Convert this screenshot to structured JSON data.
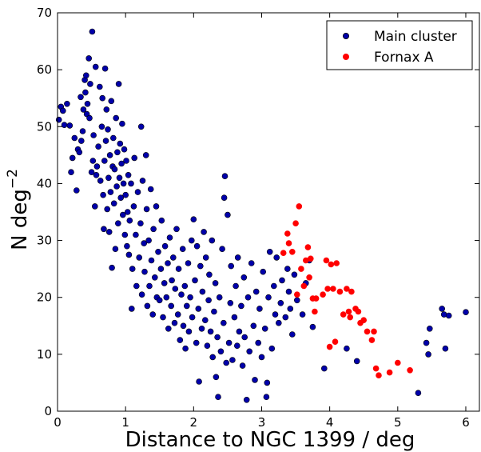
{
  "chart_data": {
    "type": "scatter",
    "title": "",
    "xlabel": "Distance to NGC 1399 / deg",
    "ylabel_main": "N deg",
    "ylabel_sup": "−2",
    "xlim": [
      0,
      6.2
    ],
    "ylim": [
      0,
      70
    ],
    "xticks": [
      "0",
      "1",
      "2",
      "3",
      "4",
      "5",
      "6"
    ],
    "yticks": [
      "0",
      "10",
      "20",
      "30",
      "40",
      "50",
      "60",
      "70"
    ],
    "grid": false,
    "legend_position": "top-right",
    "series": [
      {
        "name": "Main cluster",
        "color": "#0000aa",
        "points": [
          [
            0.02,
            51.2
          ],
          [
            0.05,
            53.5
          ],
          [
            0.08,
            52.8
          ],
          [
            0.1,
            50.3
          ],
          [
            0.14,
            54.0
          ],
          [
            0.18,
            50.2
          ],
          [
            0.2,
            42.0
          ],
          [
            0.22,
            44.5
          ],
          [
            0.25,
            48.0
          ],
          [
            0.28,
            38.8
          ],
          [
            0.3,
            46.0
          ],
          [
            0.32,
            45.5
          ],
          [
            0.34,
            55.2
          ],
          [
            0.35,
            47.5
          ],
          [
            0.37,
            49.2
          ],
          [
            0.38,
            53.0
          ],
          [
            0.4,
            58.2
          ],
          [
            0.41,
            56.0
          ],
          [
            0.42,
            59.0
          ],
          [
            0.43,
            52.2
          ],
          [
            0.44,
            54.0
          ],
          [
            0.46,
            62.0
          ],
          [
            0.47,
            51.5
          ],
          [
            0.48,
            57.5
          ],
          [
            0.5,
            42.0
          ],
          [
            0.51,
            66.7
          ],
          [
            0.52,
            44.0
          ],
          [
            0.53,
            48.5
          ],
          [
            0.55,
            36.0
          ],
          [
            0.56,
            60.5
          ],
          [
            0.57,
            41.5
          ],
          [
            0.58,
            43.0
          ],
          [
            0.6,
            46.5
          ],
          [
            0.62,
            57.0
          ],
          [
            0.63,
            40.5
          ],
          [
            0.65,
            50.0
          ],
          [
            0.66,
            55.0
          ],
          [
            0.67,
            38.0
          ],
          [
            0.68,
            32.0
          ],
          [
            0.69,
            44.0
          ],
          [
            0.7,
            60.2
          ],
          [
            0.71,
            47.5
          ],
          [
            0.72,
            53.0
          ],
          [
            0.73,
            35.5
          ],
          [
            0.74,
            49.5
          ],
          [
            0.75,
            41.0
          ],
          [
            0.76,
            31.5
          ],
          [
            0.77,
            45.0
          ],
          [
            0.78,
            38.5
          ],
          [
            0.79,
            54.5
          ],
          [
            0.8,
            25.2
          ],
          [
            0.81,
            43.0
          ],
          [
            0.82,
            48.0
          ],
          [
            0.83,
            36.5
          ],
          [
            0.84,
            42.5
          ],
          [
            0.85,
            28.5
          ],
          [
            0.86,
            51.5
          ],
          [
            0.87,
            39.5
          ],
          [
            0.88,
            45.5
          ],
          [
            0.89,
            33.0
          ],
          [
            0.9,
            57.5
          ],
          [
            0.91,
            41.0
          ],
          [
            0.92,
            47.0
          ],
          [
            0.93,
            37.5
          ],
          [
            0.94,
            43.5
          ],
          [
            0.95,
            50.5
          ],
          [
            0.96,
            34.5
          ],
          [
            0.97,
            40.0
          ],
          [
            0.98,
            46.0
          ],
          [
            0.99,
            31.0
          ],
          [
            1.0,
            38.0
          ],
          [
            1.01,
            44.0
          ],
          [
            1.02,
            29.0
          ],
          [
            1.03,
            35.0
          ],
          [
            1.04,
            41.5
          ],
          [
            1.05,
            27.5
          ],
          [
            1.06,
            33.5
          ],
          [
            1.08,
            40.0
          ],
          [
            1.09,
            18.0
          ],
          [
            1.1,
            25.0
          ],
          [
            1.12,
            36.0
          ],
          [
            1.13,
            44.5
          ],
          [
            1.15,
            31.0
          ],
          [
            1.16,
            22.0
          ],
          [
            1.18,
            38.5
          ],
          [
            1.2,
            27.0
          ],
          [
            1.22,
            33.0
          ],
          [
            1.23,
            50.0
          ],
          [
            1.24,
            20.5
          ],
          [
            1.25,
            40.5
          ],
          [
            1.27,
            29.5
          ],
          [
            1.28,
            24.5
          ],
          [
            1.3,
            45.0
          ],
          [
            1.31,
            35.5
          ],
          [
            1.32,
            18.5
          ],
          [
            1.34,
            30.0
          ],
          [
            1.35,
            22.0
          ],
          [
            1.37,
            39.0
          ],
          [
            1.38,
            26.5
          ],
          [
            1.4,
            17.0
          ],
          [
            1.41,
            32.0
          ],
          [
            1.43,
            23.5
          ],
          [
            1.45,
            36.0
          ],
          [
            1.46,
            20.0
          ],
          [
            1.48,
            28.0
          ],
          [
            1.5,
            19.5
          ],
          [
            1.52,
            25.0
          ],
          [
            1.53,
            33.5
          ],
          [
            1.55,
            16.5
          ],
          [
            1.57,
            22.5
          ],
          [
            1.58,
            29.0
          ],
          [
            1.6,
            20.0
          ],
          [
            1.62,
            26.0
          ],
          [
            1.63,
            14.5
          ],
          [
            1.65,
            30.5
          ],
          [
            1.67,
            18.5
          ],
          [
            1.68,
            23.0
          ],
          [
            1.7,
            27.0
          ],
          [
            1.72,
            15.5
          ],
          [
            1.73,
            21.5
          ],
          [
            1.75,
            32.0
          ],
          [
            1.77,
            17.0
          ],
          [
            1.78,
            25.0
          ],
          [
            1.8,
            12.5
          ],
          [
            1.82,
            20.5
          ],
          [
            1.84,
            28.5
          ],
          [
            1.85,
            15.0
          ],
          [
            1.87,
            22.0
          ],
          [
            1.88,
            11.0
          ],
          [
            1.9,
            18.5
          ],
          [
            1.92,
            26.0
          ],
          [
            1.93,
            14.0
          ],
          [
            1.95,
            20.0
          ],
          [
            1.97,
            30.0
          ],
          [
            1.98,
            16.5
          ],
          [
            2.0,
            33.7
          ],
          [
            2.02,
            23.0
          ],
          [
            2.04,
            12.0
          ],
          [
            2.05,
            29.0
          ],
          [
            2.07,
            18.0
          ],
          [
            2.08,
            5.2
          ],
          [
            2.1,
            25.5
          ],
          [
            2.12,
            14.5
          ],
          [
            2.13,
            21.0
          ],
          [
            2.15,
            31.5
          ],
          [
            2.17,
            16.0
          ],
          [
            2.18,
            27.0
          ],
          [
            2.2,
            11.5
          ],
          [
            2.22,
            19.5
          ],
          [
            2.23,
            24.0
          ],
          [
            2.25,
            14.0
          ],
          [
            2.27,
            30.0
          ],
          [
            2.28,
            9.5
          ],
          [
            2.3,
            17.5
          ],
          [
            2.32,
            22.5
          ],
          [
            2.33,
            6.0
          ],
          [
            2.35,
            13.0
          ],
          [
            2.36,
            2.5
          ],
          [
            2.38,
            20.0
          ],
          [
            2.4,
            10.5
          ],
          [
            2.42,
            28.5
          ],
          [
            2.44,
            15.5
          ],
          [
            2.45,
            37.5
          ],
          [
            2.46,
            41.3
          ],
          [
            2.48,
            8.5
          ],
          [
            2.5,
            34.5
          ],
          [
            2.52,
            12.0
          ],
          [
            2.54,
            19.0
          ],
          [
            2.55,
            25.5
          ],
          [
            2.57,
            9.0
          ],
          [
            2.6,
            16.5
          ],
          [
            2.62,
            22.0
          ],
          [
            2.64,
            11.5
          ],
          [
            2.65,
            27.0
          ],
          [
            2.67,
            14.0
          ],
          [
            2.7,
            18.5
          ],
          [
            2.72,
            8.0
          ],
          [
            2.74,
            23.5
          ],
          [
            2.75,
            13.0
          ],
          [
            2.78,
            2.0
          ],
          [
            2.8,
            20.0
          ],
          [
            2.82,
            10.5
          ],
          [
            2.85,
            26.0
          ],
          [
            2.88,
            15.0
          ],
          [
            2.9,
            5.5
          ],
          [
            2.92,
            21.0
          ],
          [
            2.95,
            12.0
          ],
          [
            2.97,
            18.0
          ],
          [
            3.0,
            9.5
          ],
          [
            3.02,
            24.5
          ],
          [
            3.05,
            14.5
          ],
          [
            3.07,
            2.5
          ],
          [
            3.08,
            5.0
          ],
          [
            3.1,
            20.0
          ],
          [
            3.12,
            28.0
          ],
          [
            3.15,
            11.0
          ],
          [
            3.18,
            22.0
          ],
          [
            3.2,
            17.0
          ],
          [
            3.22,
            27.0
          ],
          [
            3.25,
            15.5
          ],
          [
            3.28,
            19.0
          ],
          [
            3.3,
            23.0
          ],
          [
            3.35,
            16.5
          ],
          [
            3.38,
            25.0
          ],
          [
            3.4,
            21.0
          ],
          [
            3.42,
            18.0
          ],
          [
            3.45,
            13.5
          ],
          [
            3.48,
            24.0
          ],
          [
            3.52,
            19.5
          ],
          [
            3.6,
            17.0
          ],
          [
            3.65,
            22.5
          ],
          [
            3.7,
            26.5
          ],
          [
            3.75,
            14.8
          ],
          [
            3.92,
            7.5
          ],
          [
            4.25,
            11.0
          ],
          [
            4.4,
            8.8
          ],
          [
            5.3,
            3.2
          ],
          [
            5.42,
            12.0
          ],
          [
            5.45,
            10.0
          ],
          [
            5.47,
            14.5
          ],
          [
            5.65,
            18.0
          ],
          [
            5.68,
            17.0
          ],
          [
            5.7,
            11.0
          ],
          [
            5.75,
            16.8
          ],
          [
            6.0,
            17.4
          ]
        ]
      },
      {
        "name": "Fornax A",
        "color": "#ff0000",
        "points": [
          [
            3.32,
            27.8
          ],
          [
            3.38,
            31.2
          ],
          [
            3.4,
            29.5
          ],
          [
            3.45,
            28.0
          ],
          [
            3.5,
            33.0
          ],
          [
            3.52,
            20.5
          ],
          [
            3.55,
            36.0
          ],
          [
            3.58,
            25.0
          ],
          [
            3.62,
            22.0
          ],
          [
            3.65,
            26.5
          ],
          [
            3.68,
            28.8
          ],
          [
            3.7,
            23.5
          ],
          [
            3.72,
            26.8
          ],
          [
            3.75,
            19.8
          ],
          [
            3.78,
            17.5
          ],
          [
            3.8,
            19.8
          ],
          [
            3.9,
            20.5
          ],
          [
            3.95,
            26.5
          ],
          [
            3.97,
            21.5
          ],
          [
            4.0,
            11.3
          ],
          [
            4.02,
            25.8
          ],
          [
            4.05,
            21.5
          ],
          [
            4.08,
            12.2
          ],
          [
            4.1,
            26.0
          ],
          [
            4.15,
            21.0
          ],
          [
            4.2,
            17.0
          ],
          [
            4.25,
            21.5
          ],
          [
            4.28,
            17.5
          ],
          [
            4.3,
            16.5
          ],
          [
            4.32,
            21.0
          ],
          [
            4.38,
            18.0
          ],
          [
            4.42,
            17.5
          ],
          [
            4.45,
            15.5
          ],
          [
            4.5,
            16.0
          ],
          [
            4.55,
            14.0
          ],
          [
            4.62,
            12.5
          ],
          [
            4.65,
            14.0
          ],
          [
            4.68,
            7.5
          ],
          [
            4.72,
            6.3
          ],
          [
            4.88,
            6.8
          ],
          [
            5.0,
            8.5
          ],
          [
            5.18,
            7.2
          ]
        ]
      }
    ]
  }
}
